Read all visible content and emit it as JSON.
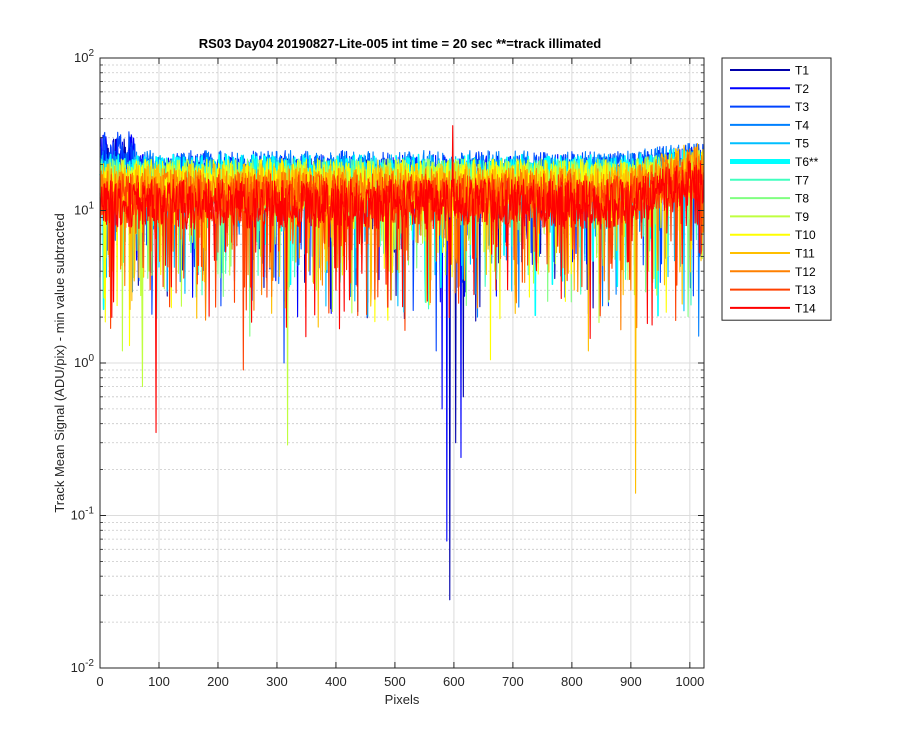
{
  "chart_data": {
    "type": "line",
    "title": "RS03 Day04 20190827-Lite-005 int time = 20 sec    **=track illimated",
    "xlabel": "Pixels",
    "ylabel": "Track Mean Signal (ADU/pix) - min value subtracted",
    "xlim": [
      0,
      1024
    ],
    "ylim": [
      0.01,
      100
    ],
    "yscale": "log",
    "xticks": [
      0,
      100,
      200,
      300,
      400,
      500,
      600,
      700,
      800,
      900,
      1000
    ],
    "xtick_labels": [
      "0",
      "100",
      "200",
      "300",
      "400",
      "500",
      "600",
      "700",
      "800",
      "900",
      "1000"
    ],
    "yticks": [
      {
        "value": 0.01,
        "base": "10",
        "exp": "-2"
      },
      {
        "value": 0.1,
        "base": "10",
        "exp": "-1"
      },
      {
        "value": 1,
        "base": "10",
        "exp": "0"
      },
      {
        "value": 10,
        "base": "10",
        "exp": "1"
      },
      {
        "value": 100,
        "base": "10",
        "exp": "2"
      }
    ],
    "grid": true,
    "legend_position": "outside-top-right",
    "series": [
      {
        "name": "T1",
        "color": "#0000aa",
        "base": 15,
        "highlight": false,
        "dips": [
          [
            593,
            0.028
          ],
          [
            616,
            0.6
          ],
          [
            603,
            0.3
          ]
        ]
      },
      {
        "name": "T2",
        "color": "#0000ff",
        "base": 16,
        "highlight": false,
        "dips": [
          [
            588,
            0.068
          ],
          [
            612,
            0.24
          ],
          [
            580,
            0.5
          ]
        ]
      },
      {
        "name": "T3",
        "color": "#0044ff",
        "base": 17,
        "highlight": false,
        "dips": [
          [
            570,
            1.2
          ],
          [
            312,
            1.0
          ]
        ]
      },
      {
        "name": "T4",
        "color": "#0080ff",
        "base": 17,
        "highlight": false,
        "dips": [
          [
            1015,
            1.5
          ],
          [
            640,
            2.0
          ]
        ]
      },
      {
        "name": "T5",
        "color": "#00bfff",
        "base": 16,
        "highlight": false,
        "dips": [
          [
            990,
            2.2
          ]
        ]
      },
      {
        "name": "T6**",
        "color": "#00ffff",
        "base": 16,
        "highlight": true,
        "dips": []
      },
      {
        "name": "T7",
        "color": "#40ffbf",
        "base": 15,
        "highlight": false,
        "dips": [
          [
            185,
            3.0
          ]
        ]
      },
      {
        "name": "T8",
        "color": "#80ff80",
        "base": 15,
        "highlight": false,
        "dips": [
          [
            254,
            1.5
          ],
          [
            320,
            3.0
          ]
        ]
      },
      {
        "name": "T9",
        "color": "#bfff40",
        "base": 15,
        "highlight": false,
        "dips": [
          [
            318,
            0.29
          ],
          [
            72,
            0.7
          ],
          [
            38,
            1.2
          ]
        ]
      },
      {
        "name": "T10",
        "color": "#ffff00",
        "base": 15,
        "highlight": false,
        "dips": [
          [
            662,
            1.05
          ],
          [
            50,
            1.3
          ]
        ]
      },
      {
        "name": "T11",
        "color": "#ffbf00",
        "base": 14,
        "highlight": false,
        "dips": [
          [
            908,
            0.14
          ],
          [
            828,
            1.2
          ]
        ]
      },
      {
        "name": "T12",
        "color": "#ff8000",
        "base": 13,
        "highlight": false,
        "dips": [
          [
            900,
            3.0
          ]
        ]
      },
      {
        "name": "T13",
        "color": "#ff4000",
        "base": 12,
        "highlight": false,
        "dips": [
          [
            243,
            0.9
          ],
          [
            228,
            2.5
          ]
        ]
      },
      {
        "name": "T14",
        "color": "#ff0000",
        "base": 11,
        "highlight": false,
        "dips": [
          [
            95,
            0.35
          ]
        ],
        "spikes": [
          [
            598,
            36
          ]
        ]
      }
    ]
  }
}
